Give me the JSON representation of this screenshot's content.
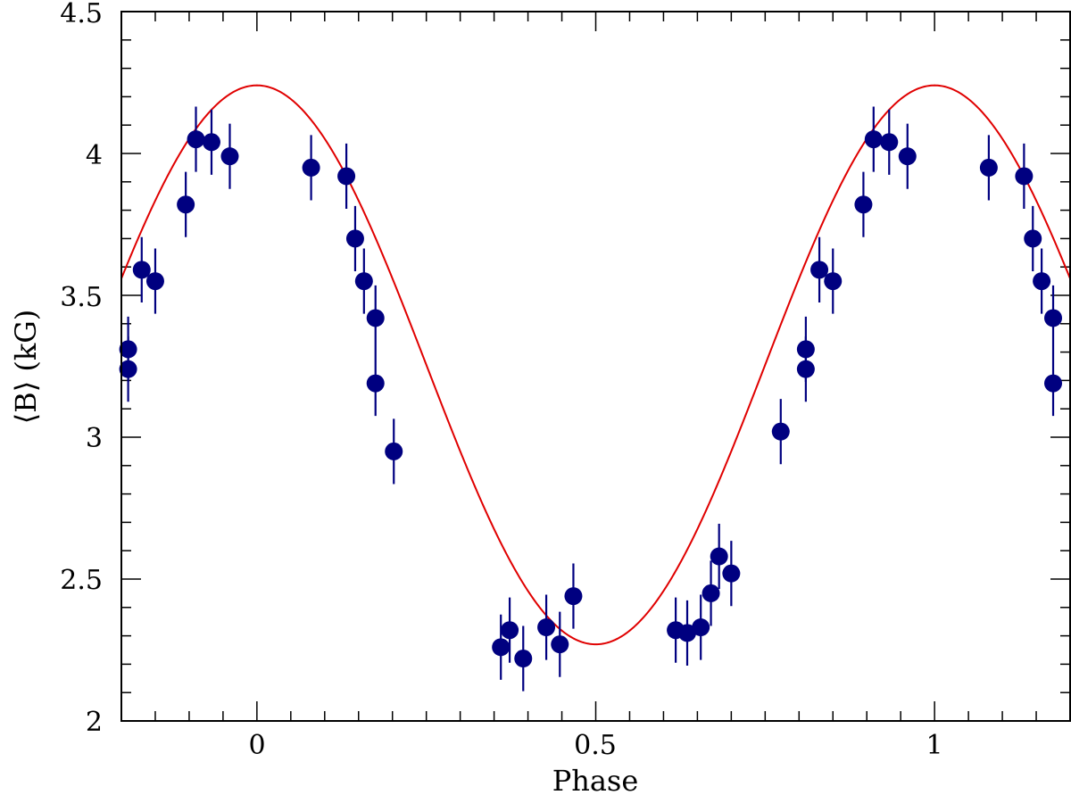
{
  "chart_data": {
    "type": "scatter",
    "xlabel": "Phase",
    "ylabel": "⟨B⟩ (kG)",
    "xlim": [
      -0.2,
      1.2
    ],
    "ylim": [
      2,
      4.5
    ],
    "x_ticks": [
      "0",
      "0.5",
      "1"
    ],
    "y_ticks": [
      "2",
      "2.5",
      "3",
      "3.5",
      "4",
      "4.5"
    ],
    "grid": false,
    "colors": {
      "points": "#000080",
      "fit": "#e00000",
      "axes": "#000000"
    },
    "series": [
      {
        "type": "scatter_errorbar",
        "x": [
          -0.19,
          -0.19,
          -0.17,
          -0.15,
          -0.105,
          -0.09,
          -0.067,
          -0.04,
          0.08,
          0.132,
          0.145,
          0.158,
          0.175,
          0.175,
          0.202,
          0.36,
          0.373,
          0.393,
          0.427,
          0.447,
          0.467,
          0.618,
          0.635,
          0.655,
          0.67,
          0.682,
          0.7,
          0.773,
          0.81,
          0.81,
          0.83,
          0.85,
          0.895,
          0.91,
          0.933,
          0.96,
          1.08,
          1.132,
          1.145,
          1.158,
          1.175,
          1.175
        ],
        "y": [
          3.31,
          3.24,
          3.59,
          3.55,
          3.82,
          4.05,
          4.04,
          3.99,
          3.95,
          3.92,
          3.7,
          3.55,
          3.42,
          3.19,
          2.95,
          2.26,
          2.32,
          2.22,
          2.33,
          2.27,
          2.44,
          2.32,
          2.31,
          2.33,
          2.45,
          2.58,
          2.52,
          3.02,
          3.31,
          3.24,
          3.59,
          3.55,
          3.82,
          4.05,
          4.04,
          3.99,
          3.95,
          3.92,
          3.7,
          3.55,
          3.42,
          3.19
        ],
        "yerr": 0.115
      },
      {
        "type": "line",
        "model": "sinusoid",
        "mean": 3.255,
        "amplitude": 0.985,
        "peak_phase": 0.0,
        "second_harmonic_cos": 0.0,
        "second_harmonic_sin": 0.0
      }
    ]
  }
}
